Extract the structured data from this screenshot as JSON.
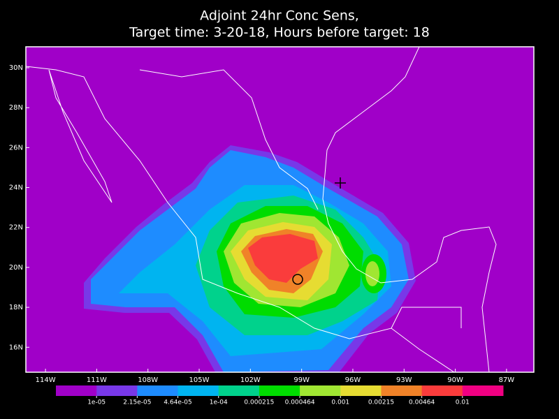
{
  "chart_data": {
    "type": "map",
    "title": [
      "Adjoint 24hr Conc Sens,",
      "Target time: 3-20-18, Hours before target: 18"
    ],
    "xlim": [
      -115.15,
      -85.4
    ],
    "ylim": [
      14.75,
      31.05
    ],
    "xticks": [
      {
        "value": -114,
        "label": "114W"
      },
      {
        "value": -111,
        "label": "111W"
      },
      {
        "value": -108,
        "label": "108W"
      },
      {
        "value": -105,
        "label": "105W"
      },
      {
        "value": -102,
        "label": "102W"
      },
      {
        "value": -99,
        "label": "99W"
      },
      {
        "value": -96,
        "label": "96W"
      },
      {
        "value": -93,
        "label": "93W"
      },
      {
        "value": -90,
        "label": "90W"
      },
      {
        "value": -87,
        "label": "87W"
      }
    ],
    "yticks": [
      {
        "value": 16,
        "label": "16N"
      },
      {
        "value": 18,
        "label": "18N"
      },
      {
        "value": 20,
        "label": "20N"
      },
      {
        "value": 22,
        "label": "22N"
      },
      {
        "value": 24,
        "label": "24N"
      },
      {
        "value": 26,
        "label": "26N"
      },
      {
        "value": 28,
        "label": "28N"
      },
      {
        "value": 30,
        "label": "30N"
      }
    ],
    "colorbar": {
      "levels": [
        {
          "value": 1e-05,
          "label": "1e-05"
        },
        {
          "value": 2.15e-05,
          "label": "2.15e-05"
        },
        {
          "value": 4.64e-05,
          "label": "4.64e-05"
        },
        {
          "value": 0.0001,
          "label": "1e-04"
        },
        0.000215,
        0.000464,
        0.001,
        0.00215,
        0.00464,
        0.01
      ],
      "colors": [
        "#a000c8",
        "#7838e8",
        "#1e8cff",
        "#00b4f0",
        "#00d28c",
        "#00dc00",
        "#a0e632",
        "#e6dc32",
        "#f08228",
        "#fa3c3c",
        "#f00082"
      ]
    }
  }
}
